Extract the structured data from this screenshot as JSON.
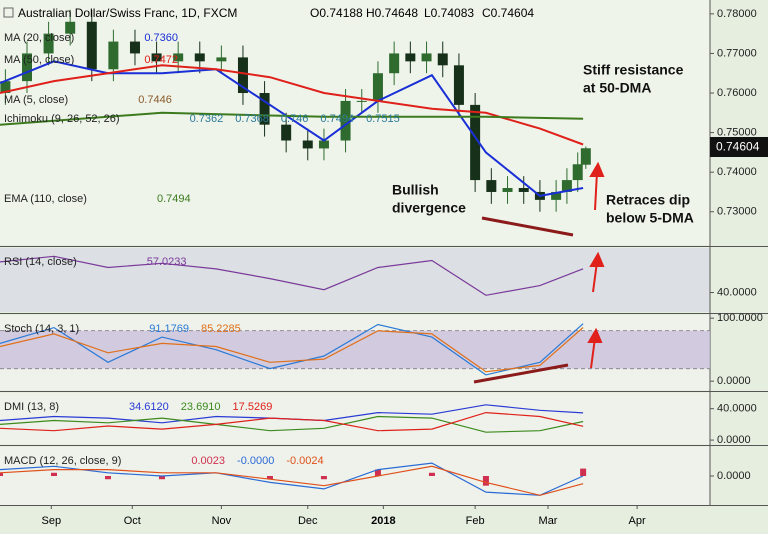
{
  "chart_data": [
    {
      "type": "candlestick",
      "title": "Australian Dollar/Swiss Franc, 1D, FXCM",
      "ohlc": [
        {
          "value": 0.74188,
          "label": "O0.74188"
        },
        {
          "value": 0.74648,
          "label": "H0.74648"
        },
        {
          "value": 0.74083,
          "label": "L0.74083"
        },
        {
          "value": 0.74604,
          "label": "C0.74604"
        }
      ],
      "x": [
        2,
        10,
        18,
        26,
        34,
        42,
        50,
        58,
        66,
        74,
        82,
        90,
        98,
        106,
        114,
        120,
        128,
        134,
        140,
        146,
        152,
        158,
        164,
        170,
        176,
        182,
        188,
        194,
        200,
        206,
        210,
        214,
        217
      ],
      "open": [
        0.76,
        0.763,
        0.77,
        0.775,
        0.778,
        0.766,
        0.773,
        0.77,
        0.768,
        0.77,
        0.768,
        0.769,
        0.76,
        0.752,
        0.748,
        0.746,
        0.748,
        0.758,
        0.758,
        0.765,
        0.77,
        0.768,
        0.77,
        0.767,
        0.757,
        0.738,
        0.735,
        0.736,
        0.735,
        0.733,
        0.735,
        0.738,
        0.74188
      ],
      "high": [
        0.766,
        0.773,
        0.778,
        0.781,
        0.781,
        0.776,
        0.776,
        0.773,
        0.773,
        0.773,
        0.772,
        0.772,
        0.763,
        0.755,
        0.751,
        0.751,
        0.761,
        0.761,
        0.768,
        0.773,
        0.773,
        0.773,
        0.773,
        0.77,
        0.76,
        0.741,
        0.739,
        0.739,
        0.738,
        0.738,
        0.741,
        0.745,
        0.74648
      ],
      "low": [
        0.757,
        0.76,
        0.767,
        0.772,
        0.763,
        0.763,
        0.767,
        0.765,
        0.765,
        0.765,
        0.765,
        0.757,
        0.749,
        0.745,
        0.743,
        0.743,
        0.745,
        0.755,
        0.755,
        0.762,
        0.765,
        0.765,
        0.764,
        0.754,
        0.735,
        0.732,
        0.732,
        0.732,
        0.73,
        0.73,
        0.732,
        0.735,
        0.74083
      ],
      "close": [
        0.763,
        0.77,
        0.775,
        0.778,
        0.766,
        0.773,
        0.77,
        0.768,
        0.77,
        0.768,
        0.769,
        0.76,
        0.752,
        0.748,
        0.746,
        0.748,
        0.758,
        0.758,
        0.765,
        0.77,
        0.768,
        0.77,
        0.767,
        0.757,
        0.738,
        0.735,
        0.736,
        0.735,
        0.733,
        0.735,
        0.738,
        0.742,
        0.74604
      ],
      "up_color": "#2f6b2f",
      "down_color": "#17301a",
      "series": [
        {
          "name": "MA (20, close)",
          "color": "#1a2fd6",
          "reading": {
            "value": 0.736,
            "label": "0.7360"
          },
          "x": [
            0,
            20,
            40,
            60,
            80,
            100,
            120,
            140,
            160,
            180,
            200,
            216
          ],
          "values": [
            0.7625,
            0.768,
            0.765,
            0.765,
            0.766,
            0.757,
            0.748,
            0.758,
            0.7645,
            0.745,
            0.734,
            0.736
          ]
        },
        {
          "name": "MA (50, close)",
          "color": "#e0201a",
          "reading": 0.7472,
          "x": [
            0,
            20,
            40,
            60,
            80,
            100,
            120,
            140,
            160,
            180,
            200,
            216
          ],
          "values": [
            0.76,
            0.763,
            0.765,
            0.767,
            0.766,
            0.764,
            0.76,
            0.758,
            0.756,
            0.755,
            0.751,
            0.747
          ]
        },
        {
          "name": "EMA (110, close)",
          "color": "#3d7a1e",
          "reading": 0.7494,
          "x": [
            0,
            60,
            120,
            180,
            216
          ],
          "values": [
            0.752,
            0.755,
            0.754,
            0.754,
            0.7535
          ]
        }
      ],
      "indicators": [
        {
          "name": "MA (5, close)",
          "color": "#8a5a2a",
          "readings": [
            0.7446
          ]
        },
        {
          "name": "Ichimoku (9, 26, 52, 26)",
          "color": "#2a7a9a",
          "readings": [
            0.7362,
            0.7368,
            0.746,
            0.7494,
            0.7515
          ]
        }
      ],
      "annotations": [
        [
          "Stiff resistance",
          "at 50-DMA"
        ],
        [
          "Bullish",
          "divergence"
        ],
        [
          "Retraces dip",
          "below 5-DMA"
        ]
      ],
      "xlim": [
        0,
        263
      ],
      "xticks": [
        {
          "value": 19,
          "label": "Sep"
        },
        {
          "value": 49,
          "label": "Oct"
        },
        {
          "value": 82,
          "label": "Nov"
        },
        {
          "value": 114,
          "label": "Dec"
        },
        {
          "value": 142,
          "label": "2018"
        },
        {
          "value": 176,
          "label": "Feb"
        },
        {
          "value": 203,
          "label": "Mar"
        },
        {
          "value": 236,
          "label": "Apr"
        }
      ],
      "ylim": [
        0.7216,
        0.7835
      ],
      "yticks": [
        {
          "value": 0.78,
          "label": "0.78000"
        },
        {
          "value": 0.77,
          "label": "0.77000"
        },
        {
          "value": 0.76,
          "label": "0.76000"
        },
        {
          "value": 0.75,
          "label": "0.75000"
        },
        {
          "value": 0.74,
          "label": "0.74000"
        },
        {
          "value": 0.73,
          "label": "0.73000"
        }
      ]
    },
    {
      "type": "line",
      "title": "RSI (14, close)",
      "x": [
        0,
        20,
        40,
        60,
        80,
        100,
        120,
        140,
        160,
        180,
        200,
        216
      ],
      "series": [
        {
          "color": "#7a3a9a",
          "reading": 57.0233,
          "values": [
            62,
            66,
            58,
            61,
            57,
            50,
            42,
            58,
            63,
            38,
            45,
            57.0233
          ]
        }
      ],
      "ylim": [
        26,
        72
      ],
      "yticks": [
        {
          "value": 40,
          "label": "40.0000"
        }
      ]
    },
    {
      "type": "line",
      "title": "Stoch (14, 3, 1)",
      "x": [
        0,
        20,
        40,
        60,
        80,
        100,
        120,
        140,
        160,
        180,
        200,
        216
      ],
      "band": [
        20,
        80
      ],
      "series": [
        {
          "color": "#2a7ad6",
          "reading": 91.1769,
          "values": [
            60,
            85,
            30,
            70,
            50,
            20,
            40,
            90,
            70,
            10,
            30,
            91.1769
          ]
        },
        {
          "color": "#e0701a",
          "reading": 85.2285,
          "values": [
            55,
            75,
            45,
            60,
            55,
            30,
            35,
            80,
            75,
            15,
            25,
            85.2285
          ]
        }
      ],
      "ylim": [
        -14,
        105
      ],
      "yticks": [
        {
          "value": 100,
          "label": "100.0000"
        },
        {
          "value": 0,
          "label": "0.0000"
        }
      ]
    },
    {
      "type": "line",
      "title": "DMI (13, 8)",
      "x": [
        0,
        20,
        40,
        60,
        80,
        100,
        120,
        140,
        160,
        180,
        200,
        216
      ],
      "series": [
        {
          "color": "#2a3ad6",
          "reading": 34.612,
          "reading_label": "34.6120",
          "values": [
            25,
            30,
            28,
            22,
            30,
            28,
            25,
            35,
            33,
            45,
            38,
            34.612
          ]
        },
        {
          "color": "#3d8a1e",
          "reading": 23.691,
          "reading_label": "23.6910",
          "values": [
            20,
            25,
            22,
            28,
            20,
            12,
            15,
            30,
            28,
            10,
            12,
            23.691
          ]
        },
        {
          "color": "#e0201a",
          "reading": 17.5269,
          "values": [
            15,
            12,
            18,
            14,
            20,
            28,
            25,
            12,
            14,
            35,
            30,
            17.5269
          ]
        }
      ],
      "ylim": [
        -5,
        60
      ],
      "yticks": [
        {
          "value": 40,
          "label": "40.0000"
        },
        {
          "value": 0,
          "label": "0.0000"
        }
      ]
    },
    {
      "type": "line",
      "title": "MACD (12, 26, close, 9)",
      "x": [
        0,
        20,
        40,
        60,
        80,
        100,
        120,
        140,
        160,
        180,
        200,
        216
      ],
      "series": [
        {
          "kind": "bar",
          "color": "#d03050",
          "reading": 0.0023,
          "values": [
            0.001,
            0.001,
            -0.001,
            -0.001,
            0,
            -0.001,
            -0.001,
            0.002,
            0.001,
            -0.003,
            0,
            0.0023
          ]
        },
        {
          "color": "#2a6ad6",
          "reading": {
            "value": 0,
            "label": "-0.0000"
          },
          "values": [
            0.002,
            0.003,
            0.001,
            0,
            0.001,
            -0.002,
            -0.004,
            0.002,
            0.004,
            -0.005,
            -0.006,
            0
          ]
        },
        {
          "color": "#e0501a",
          "reading": -0.0024,
          "values": [
            0.001,
            0.002,
            0.002,
            0.001,
            0.001,
            -0.001,
            -0.003,
            0,
            0.003,
            -0.002,
            -0.006,
            -0.0024
          ]
        }
      ],
      "ylim": [
        -0.009,
        0.009
      ],
      "yticks": [
        {
          "value": 0,
          "label": "0.0000"
        }
      ]
    }
  ]
}
